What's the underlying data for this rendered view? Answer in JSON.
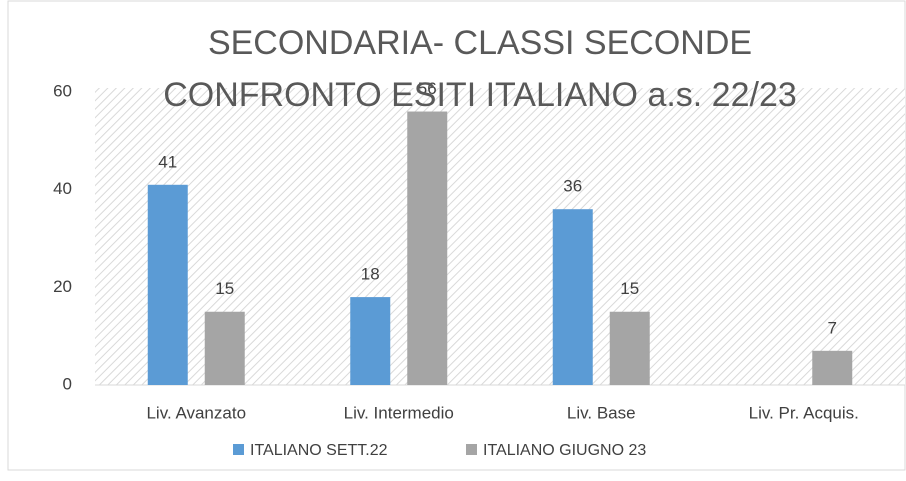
{
  "chart_data": {
    "type": "bar",
    "title": [
      "SECONDARIA- CLASSI  SECONDE",
      "CONFRONTO ESITI ITALIANO  a.s.  22/23"
    ],
    "categories": [
      "Liv. Avanzato",
      "Liv.  Intermedio",
      "Liv. Base",
      "Liv. Pr. Acquis."
    ],
    "series": [
      {
        "name": "ITALIANO SETT.22",
        "color": "#5b9bd5",
        "values": [
          41,
          18,
          36,
          null
        ]
      },
      {
        "name": "ITALIANO GIUGNO 23",
        "color": "#a5a5a5",
        "values": [
          15,
          56,
          15,
          7
        ]
      }
    ],
    "ylim": [
      0,
      60
    ],
    "yticks": [
      0,
      20,
      40,
      60
    ],
    "legend": "bottom"
  }
}
